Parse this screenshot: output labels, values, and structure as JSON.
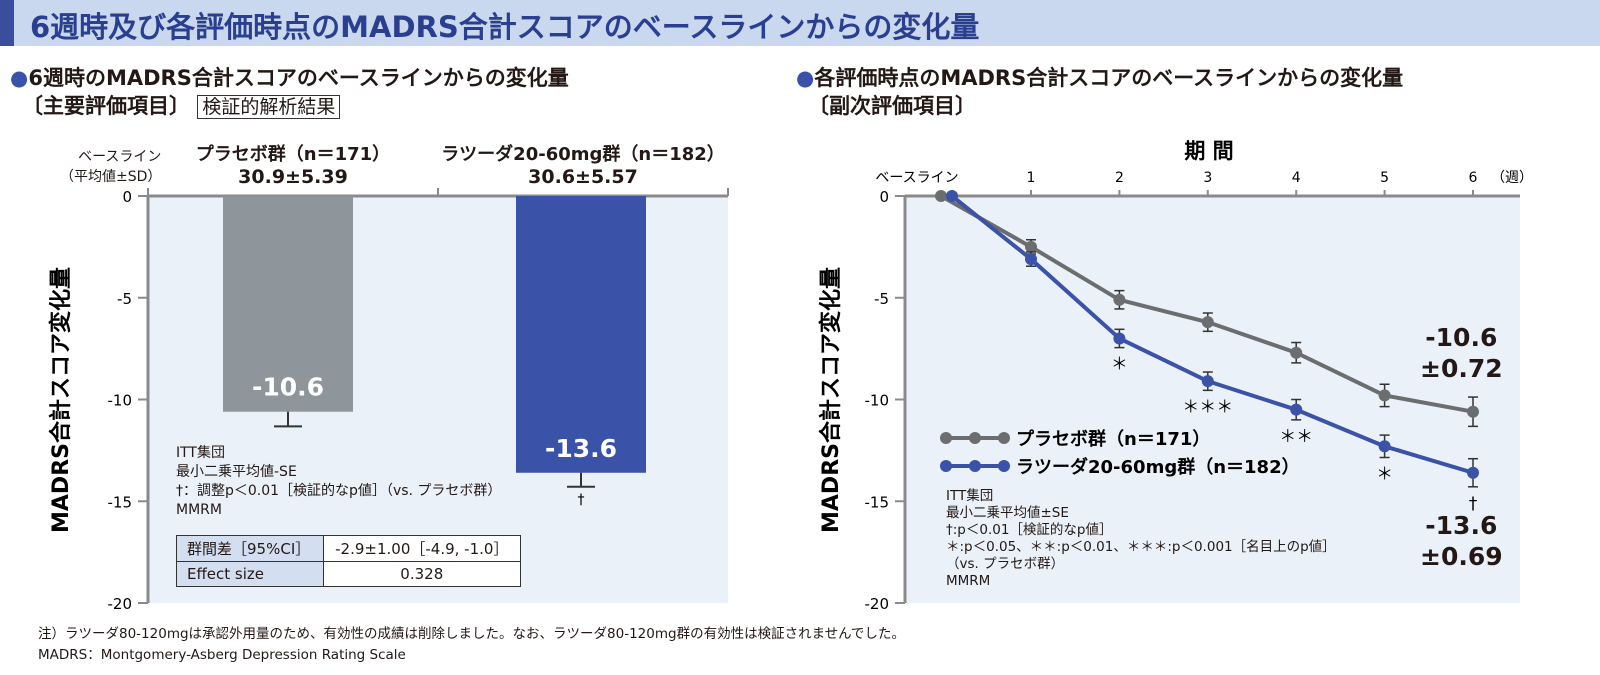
{
  "banner": {
    "title": "6週時及び各評価時点のMADRS合計スコアのベースラインからの変化量"
  },
  "left": {
    "title": "6週時のMADRS合計スコアのベースラインからの変化量",
    "subtitle": "〔主要評価項目〕",
    "badge": "検証的解析結果",
    "baseline_label_1": "ベースライン",
    "baseline_label_2": "（平均値±SD）",
    "groups": [
      {
        "name": "プラセボ群（n＝171）",
        "baseline": "30.9±5.39"
      },
      {
        "name": "ラツーダ20-60mg群（n＝182）",
        "baseline": "30.6±5.57"
      }
    ],
    "notes": [
      "ITT集団",
      "最小二乗平均値-SE",
      "†：調整p＜0.01［検証的なp値］（vs. プラセボ群）",
      "MMRM"
    ],
    "table": [
      {
        "label": "群間差［95%CI］",
        "value": "-2.9±1.00［-4.9, -1.0］"
      },
      {
        "label": "Effect size",
        "value": "0.328"
      }
    ]
  },
  "right": {
    "title": "各評価時点のMADRS合計スコアのベースラインからの変化量",
    "subtitle": "〔副次評価項目〕",
    "notes": [
      "ITT集団",
      "最小二乗平均値±SE",
      "†:p＜0.01［検証的なp値］",
      "＊:p＜0.05、＊＊:p＜0.01、＊＊＊:p＜0.001［名目上のp値］",
      "（vs. プラセボ群）",
      "MMRM"
    ],
    "end_labels": {
      "placebo_1": "-10.6",
      "placebo_2": "±0.72",
      "drug_1": "-13.6",
      "drug_2": "±0.69"
    }
  },
  "footnotes": [
    "注）ラツーダ80-120mgは承認外用量のため、有効性の成績は削除しました。なお、ラツーダ80-120mg群の有効性は検証されませんでした。",
    "MADRS：Montgomery-Asberg Depression Rating Scale"
  ],
  "colors": {
    "placebo_bar": "#8f969b",
    "placebo_line": "#6b6d6f",
    "drug": "#3a52a8",
    "panel": "#eaf1f8",
    "axis": "#8a8a8a"
  },
  "chart_data": [
    {
      "type": "bar",
      "categories": [
        "プラセボ群（n＝171）",
        "ラツーダ20-60mg群（n＝182）"
      ],
      "values": [
        -10.6,
        -13.6
      ],
      "error_se": [
        0.72,
        0.69
      ],
      "data_labels": [
        "-10.6",
        "-13.6"
      ],
      "annotations": [
        "",
        "†"
      ],
      "ylabel": "MADRS合計スコア変化量",
      "ylim": [
        -20,
        0
      ],
      "yticks": [
        "0",
        "-5",
        "-10",
        "-15",
        "-20"
      ],
      "grid": false
    },
    {
      "type": "line",
      "title": "期 間",
      "x": [
        "ベースライン",
        "1",
        "2",
        "3",
        "4",
        "5",
        "6"
      ],
      "x_unit": "（週）",
      "ylabel": "MADRS合計スコア変化量",
      "ylim": [
        -20,
        0
      ],
      "yticks": [
        "0",
        "-5",
        "-10",
        "-15",
        "-20"
      ],
      "legend": "bottom-left",
      "grid": false,
      "series": [
        {
          "name": "プラセボ群（n＝171）",
          "values": [
            0,
            -2.5,
            -5.1,
            -6.2,
            -7.7,
            -9.8,
            -10.6
          ],
          "se": [
            0,
            0.35,
            0.45,
            0.45,
            0.5,
            0.55,
            0.72
          ]
        },
        {
          "name": "ラツーダ20-60mg群（n＝182）",
          "values": [
            0,
            -3.1,
            -7.0,
            -9.1,
            -10.5,
            -12.3,
            -13.6
          ],
          "se": [
            0,
            0.35,
            0.45,
            0.45,
            0.5,
            0.55,
            0.69
          ],
          "significance": [
            "",
            "",
            "＊",
            "＊＊＊",
            "＊＊",
            "＊",
            "†"
          ]
        }
      ]
    }
  ]
}
